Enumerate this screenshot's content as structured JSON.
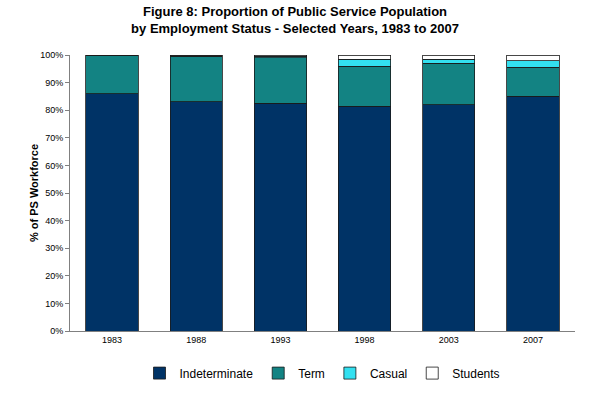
{
  "chart_data": {
    "type": "bar",
    "stacked": true,
    "title": "Figure 8: Proportion of Public Service Population\nby Employment Status - Selected Years, 1983 to 2007",
    "y_label": "% of PS Workforce",
    "categories": [
      "1983",
      "1988",
      "1993",
      "1998",
      "2003",
      "2007"
    ],
    "series": [
      {
        "name": "Indeterminate",
        "color": "#003366",
        "values": [
          86,
          83,
          82.5,
          81.5,
          82,
          85
        ]
      },
      {
        "name": "Term",
        "color": "#138383",
        "values": [
          14,
          16.5,
          16.5,
          14.5,
          15,
          10.5
        ]
      },
      {
        "name": "Casual",
        "color": "#33e0f0",
        "values": [
          0,
          0.2,
          0.5,
          2.5,
          1.5,
          2.5
        ]
      },
      {
        "name": "Students",
        "color": "#ffffff",
        "values": [
          0,
          0.3,
          0.5,
          1.5,
          1.5,
          2
        ]
      }
    ],
    "ylim": [
      0,
      100
    ],
    "yticks": [
      {
        "value": 0,
        "label": "0%"
      },
      {
        "value": 10,
        "label": "10%"
      },
      {
        "value": 20,
        "label": "20%"
      },
      {
        "value": 30,
        "label": "30%"
      },
      {
        "value": 40,
        "label": "40%"
      },
      {
        "value": 50,
        "label": "50%"
      },
      {
        "value": 60,
        "label": "60%"
      },
      {
        "value": 70,
        "label": "70%"
      },
      {
        "value": 80,
        "label": "80%"
      },
      {
        "value": 90,
        "label": "90%"
      },
      {
        "value": 100,
        "label": "100%"
      }
    ],
    "grid": false,
    "legend": "bottom"
  }
}
